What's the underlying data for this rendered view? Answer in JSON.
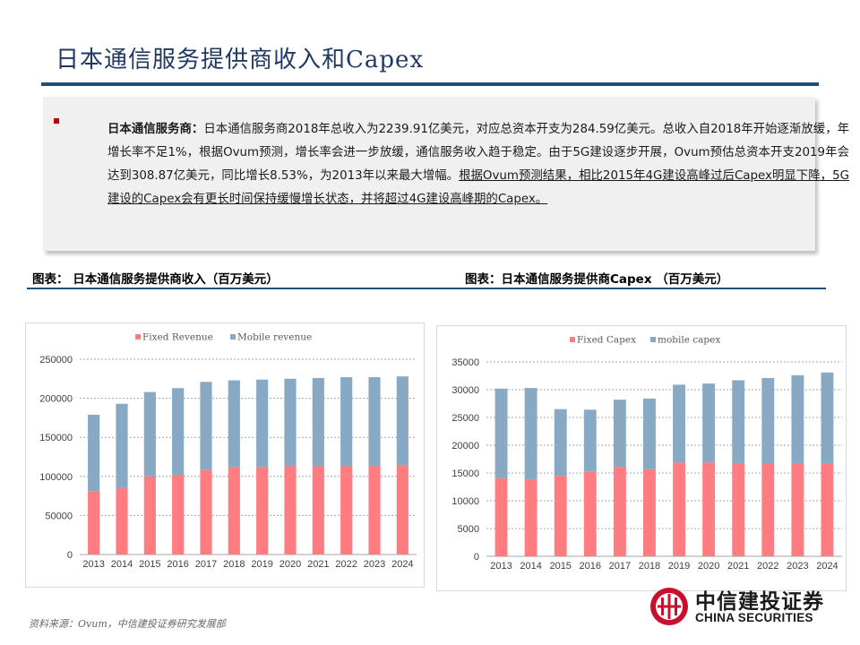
{
  "page": {
    "title_cn": "日本通信服务提供商收入和",
    "title_latin": "Capex"
  },
  "summary": {
    "lead": "日本通信服务商：",
    "body_plain": "日本通信服务商2018年总收入为2239.91亿美元，对应总资本开支为284.59亿美元。总收入自2018年开始逐渐放缓，年增长率不足1%，根据Ovum预测，增长率会进一步放缓，通信服务收入趋于稳定。由于5G建设逐步开展，Ovum预估总资本开支2019年会达到308.87亿美元，同比增长8.53%，为2013年以来最大增幅。",
    "body_underlined": "根据Ovum预测结果，相比2015年4G建设高峰过后Capex明显下降，5G建设的Capex会有更长时间保持缓慢增长状态，并将超过4G建设高峰期的Capex。"
  },
  "figures": {
    "left_label": "图表：  日本通信服务提供商收入（百万美元）",
    "right_label": "图表：日本通信服务提供商Capex  （百万美元）"
  },
  "colors": {
    "fixed": "#ff7c80",
    "mobile": "#87a9c4",
    "title": "#1f3864",
    "rule": "#1f4e79"
  },
  "chart_data": [
    {
      "type": "bar",
      "stacked": true,
      "categories": [
        "2013",
        "2014",
        "2015",
        "2016",
        "2017",
        "2018",
        "2019",
        "2020",
        "2021",
        "2022",
        "2023",
        "2024"
      ],
      "series": [
        {
          "name": "Fixed Revenue",
          "values": [
            81000,
            85000,
            100000,
            102000,
            108000,
            112000,
            112000,
            113000,
            113000,
            113000,
            113000,
            114000
          ]
        },
        {
          "name": "Mobile revenue",
          "values": [
            98000,
            108000,
            108000,
            111000,
            113000,
            111000,
            112000,
            112000,
            113000,
            114000,
            114000,
            114000
          ]
        }
      ],
      "ylim": [
        0,
        250000
      ],
      "yticks": [
        0,
        50000,
        100000,
        150000,
        200000,
        250000
      ],
      "legend": "top-center",
      "grid": "horizontal-dashed"
    },
    {
      "type": "bar",
      "stacked": true,
      "categories": [
        "2013",
        "2014",
        "2015",
        "2016",
        "2017",
        "2018",
        "2019",
        "2020",
        "2021",
        "2022",
        "2023",
        "2024"
      ],
      "series": [
        {
          "name": "Fixed Capex",
          "values": [
            14100,
            13900,
            14500,
            15200,
            16100,
            15700,
            16900,
            16900,
            16700,
            16700,
            16700,
            16700
          ]
        },
        {
          "name": "mobile capex",
          "values": [
            16100,
            16400,
            12000,
            11200,
            12100,
            12700,
            14000,
            14200,
            15000,
            15400,
            15900,
            16400
          ]
        }
      ],
      "ylim": [
        0,
        35000
      ],
      "yticks": [
        0,
        5000,
        10000,
        15000,
        20000,
        25000,
        30000,
        35000
      ],
      "legend": "top-center",
      "grid": "horizontal-dashed"
    }
  ],
  "footer": {
    "source": "资料来源：Ovum，中信建投证券研究发展部",
    "logo_cn": "中信建投证券",
    "logo_en": "CHINA SECURITIES"
  }
}
